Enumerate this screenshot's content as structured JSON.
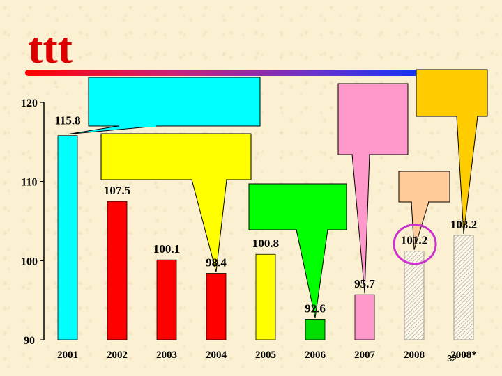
{
  "logo_text": "ttt",
  "page_number": "32",
  "chart_data": {
    "type": "bar",
    "title": "",
    "xlabel": "",
    "ylabel": "",
    "ylim": [
      90,
      120
    ],
    "y_ticks": [
      90,
      100,
      110,
      120
    ],
    "categories": [
      "2001",
      "2002",
      "2003",
      "2004",
      "2005",
      "2006",
      "2007",
      "2008",
      "2008*"
    ],
    "values": [
      115.8,
      107.5,
      100.1,
      98.4,
      100.8,
      92.6,
      95.7,
      101.2,
      103.2
    ],
    "data_labels": [
      "115.8",
      "107.5",
      "100.1",
      "98.4",
      "100.8",
      "92.6",
      "95.7",
      "101.2",
      "103.2"
    ],
    "bar_colors": [
      "#00ffff",
      "#ff0000",
      "#ff0000",
      "#ff0000",
      "#ffff00",
      "#00dd00",
      "#ff99cc",
      "hatched",
      "hatched"
    ],
    "highlighted_category": "2008",
    "highlight_color": "#cc33cc",
    "grid": false,
    "legend": "none",
    "callouts": [
      {
        "color": "#00ffff",
        "points_to": "2001"
      },
      {
        "color": "#ffff00",
        "points_to": "2004"
      },
      {
        "color": "#00ff00",
        "points_to": "2006"
      },
      {
        "color": "#ff99cc",
        "points_to": "2007"
      },
      {
        "color": "#ffcc99",
        "points_to": "2008"
      },
      {
        "color": "#ffcc00",
        "points_to": "2008*"
      }
    ]
  }
}
